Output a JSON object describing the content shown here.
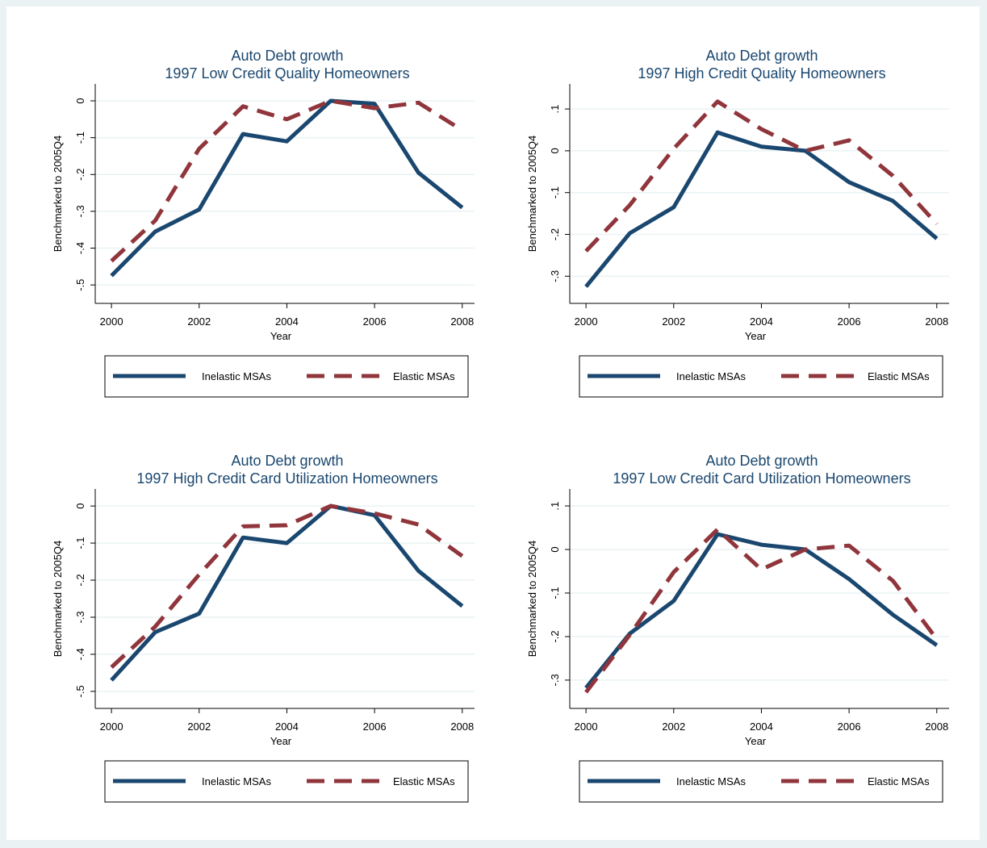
{
  "chart_data": [
    {
      "type": "line",
      "title": "Auto Debt growth",
      "subtitle": "1997 Low Credit Quality Homeowners",
      "x_label": "Year",
      "y_label": "Benchmarked to 2005Q4",
      "x": [
        2000,
        2001,
        2002,
        2003,
        2004,
        2005,
        2006,
        2007,
        2008
      ],
      "series": [
        {
          "name": "Inelastic MSAs",
          "color": "#1a476f",
          "values": [
            -0.475,
            -0.355,
            -0.295,
            -0.09,
            -0.11,
            0,
            -0.008,
            -0.195,
            -0.29
          ]
        },
        {
          "name": "Elastic MSAs",
          "color": "#90353b",
          "values": [
            -0.435,
            -0.325,
            -0.13,
            -0.015,
            -0.05,
            0,
            -0.02,
            -0.005,
            -0.08
          ]
        }
      ],
      "xlim": [
        1999.63,
        2008.28
      ],
      "xticks": [
        2000,
        2002,
        2004,
        2006,
        2008
      ],
      "ylim": [
        -0.55,
        0.046
      ],
      "yticks": [
        {
          "value": -0.5,
          "label": "-.5"
        },
        {
          "value": -0.4,
          "label": "-.4"
        },
        {
          "value": -0.3,
          "label": "-.3"
        },
        {
          "value": -0.2,
          "label": "-.2"
        },
        {
          "value": -0.1,
          "label": "-.1"
        },
        0
      ],
      "grid": true,
      "legend": "bottom"
    },
    {
      "type": "line",
      "title": "Auto Debt growth",
      "subtitle": "1997 High Credit Quality Homeowners",
      "x_label": "Year",
      "y_label": "Benchmarked to 2005Q4",
      "x": [
        2000,
        2001,
        2002,
        2003,
        2004,
        2005,
        2006,
        2007,
        2008
      ],
      "series": [
        {
          "name": "Inelastic MSAs",
          "color": "#1a476f",
          "values": [
            -0.325,
            -0.197,
            -0.135,
            0.044,
            0.01,
            0,
            -0.075,
            -0.12,
            -0.21
          ]
        },
        {
          "name": "Elastic MSAs",
          "color": "#90353b",
          "values": [
            -0.24,
            -0.13,
            0.005,
            0.118,
            0.052,
            0,
            0.025,
            -0.06,
            -0.175
          ]
        }
      ],
      "xlim": [
        1999.63,
        2008.28
      ],
      "xticks": [
        2000,
        2002,
        2004,
        2006,
        2008
      ],
      "ylim": [
        -0.365,
        0.16
      ],
      "yticks": [
        {
          "value": -0.3,
          "label": "-.3"
        },
        {
          "value": -0.2,
          "label": "-.2"
        },
        {
          "value": -0.1,
          "label": "-.1"
        },
        0,
        {
          "value": 0.1,
          "label": ".1"
        }
      ],
      "grid": true,
      "legend": "bottom"
    },
    {
      "type": "line",
      "title": "Auto Debt growth",
      "subtitle": "1997 High Credit Card Utilization Homeowners",
      "x_label": "Year",
      "y_label": "Benchmarked to 2005Q4",
      "x": [
        2000,
        2001,
        2002,
        2003,
        2004,
        2005,
        2006,
        2007,
        2008
      ],
      "series": [
        {
          "name": "Inelastic MSAs",
          "color": "#1a476f",
          "values": [
            -0.47,
            -0.34,
            -0.29,
            -0.085,
            -0.1,
            0,
            -0.025,
            -0.175,
            -0.27
          ]
        },
        {
          "name": "Elastic MSAs",
          "color": "#90353b",
          "values": [
            -0.435,
            -0.325,
            -0.185,
            -0.055,
            -0.052,
            0,
            -0.02,
            -0.05,
            -0.135
          ]
        }
      ],
      "xlim": [
        1999.63,
        2008.28
      ],
      "xticks": [
        2000,
        2002,
        2004,
        2006,
        2008
      ],
      "ylim": [
        -0.546,
        0.046
      ],
      "yticks": [
        {
          "value": -0.5,
          "label": "-.5"
        },
        {
          "value": -0.4,
          "label": "-.4"
        },
        {
          "value": -0.3,
          "label": "-.3"
        },
        {
          "value": -0.2,
          "label": "-.2"
        },
        {
          "value": -0.1,
          "label": "-.1"
        },
        0
      ],
      "grid": true,
      "legend": "bottom"
    },
    {
      "type": "line",
      "title": "Auto Debt growth",
      "subtitle": "1997 Low Credit Card Utilization Homeowners",
      "x_label": "Year",
      "y_label": "Benchmarked to 2005Q4",
      "x": [
        2000,
        2001,
        2002,
        2003,
        2004,
        2005,
        2006,
        2007,
        2008
      ],
      "series": [
        {
          "name": "Inelastic MSAs",
          "color": "#1a476f",
          "values": [
            -0.318,
            -0.193,
            -0.118,
            0.035,
            0.011,
            0,
            -0.068,
            -0.15,
            -0.22
          ]
        },
        {
          "name": "Elastic MSAs",
          "color": "#90353b",
          "values": [
            -0.328,
            -0.196,
            -0.052,
            0.046,
            -0.046,
            0,
            0.009,
            -0.072,
            -0.206
          ]
        }
      ],
      "xlim": [
        1999.63,
        2008.28
      ],
      "xticks": [
        2000,
        2002,
        2004,
        2006,
        2008
      ],
      "ylim": [
        -0.365,
        0.139
      ],
      "yticks": [
        {
          "value": -0.3,
          "label": "-.3"
        },
        {
          "value": -0.2,
          "label": "-.2"
        },
        {
          "value": -0.1,
          "label": "-.1"
        },
        0,
        {
          "value": 0.1,
          "label": ".1"
        }
      ],
      "grid": true,
      "legend": "bottom"
    }
  ]
}
